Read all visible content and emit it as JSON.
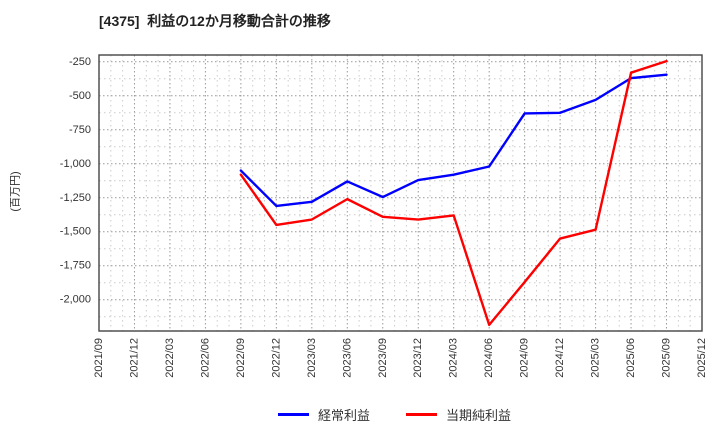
{
  "header": {
    "title": "[4375]  利益の12か月移動合計の推移"
  },
  "y_axis": {
    "unit_label": "(百万円)"
  },
  "chart_data": {
    "type": "line",
    "title": "[4375]  利益の12か月移動合計の推移",
    "xlabel": "",
    "ylabel": "(百万円)",
    "grid": "dotted major and minor gridlines, on",
    "legend_position": "bottom-center",
    "categories": [
      "2021/09",
      "2021/12",
      "2022/03",
      "2022/06",
      "2022/09",
      "2022/12",
      "2023/03",
      "2023/06",
      "2023/09",
      "2023/12",
      "2024/03",
      "2024/06",
      "2024/09",
      "2024/12",
      "2025/03",
      "2025/06",
      "2025/09",
      "2025/12"
    ],
    "series": [
      {
        "name": "経常利益",
        "color": "#0000ff",
        "values": [
          null,
          null,
          null,
          null,
          -1050,
          -1310,
          -1280,
          -1130,
          -1245,
          -1120,
          -1080,
          -1020,
          -630,
          -625,
          -530,
          -370,
          -345,
          null
        ]
      },
      {
        "name": "当期純利益",
        "color": "#ff0000",
        "values": [
          null,
          null,
          null,
          null,
          -1080,
          -1450,
          -1410,
          -1260,
          -1390,
          -1410,
          -1380,
          -2185,
          -1870,
          -1550,
          -1485,
          -330,
          -245,
          null
        ]
      }
    ],
    "y_tick_values": [
      -250,
      -500,
      -750,
      -1000,
      -1250,
      -1500,
      -1750,
      -2000
    ],
    "y_tick_labels": [
      "-250",
      "-500",
      "-750",
      "-1,000",
      "-1,250",
      "-1,500",
      "-1,750",
      "-2,000"
    ],
    "ylim": [
      -2230,
      -200
    ]
  },
  "legend": {
    "items": [
      {
        "label": "経常利益",
        "color": "#0000ff"
      },
      {
        "label": "当期純利益",
        "color": "#ff0000"
      }
    ]
  },
  "style_colors": {
    "major_grid": "#9a9a9a",
    "minor_grid": "#cccccc",
    "plot_border": "#444444",
    "tick_text": "#333333"
  }
}
